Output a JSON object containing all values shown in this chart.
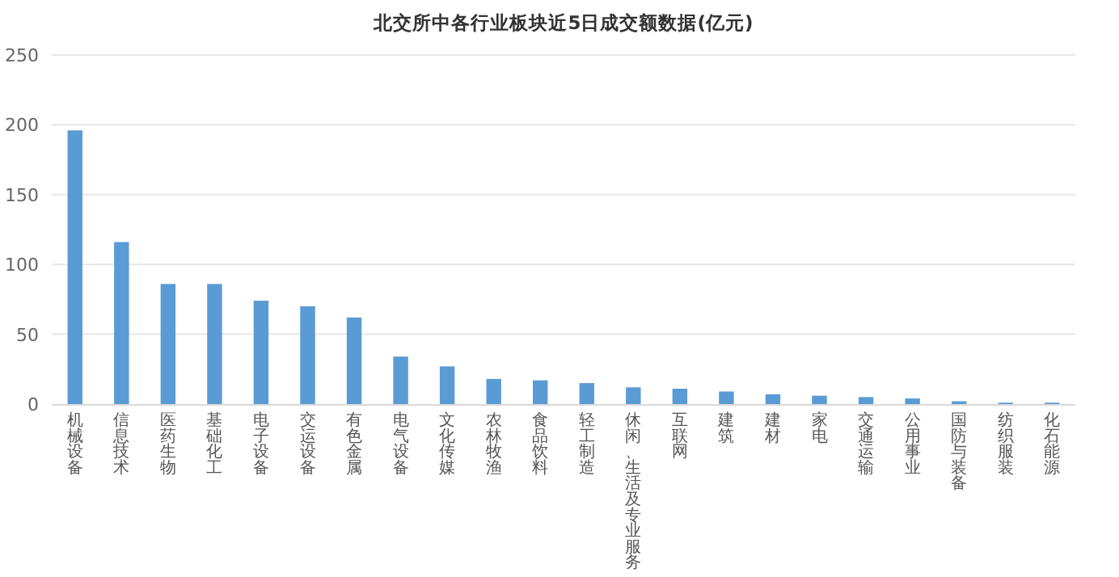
{
  "chart_data": {
    "type": "bar",
    "title": "北交所中各行业板块近5日成交额数据(亿元)",
    "categories": [
      "机械设备",
      "信息技术",
      "医药生物",
      "基础化工",
      "电子设备",
      "交运设备",
      "有色金属",
      "电气设备",
      "文化传媒",
      "农林牧渔",
      "食品饮料",
      "轻工制造",
      "休闲、生活及专业服务",
      "互联网",
      "建筑",
      "建材",
      "家电",
      "交通运输",
      "公用事业",
      "国防与装备",
      "纺织服装",
      "化石能源"
    ],
    "values": [
      196,
      116,
      86,
      86,
      74,
      70,
      62,
      34,
      27,
      18,
      17,
      15,
      12,
      11,
      9,
      7,
      6,
      5,
      4,
      2,
      1,
      1
    ],
    "color": "#5b9bd5",
    "ylim": [
      0,
      250
    ],
    "yticks": [
      0,
      50,
      100,
      150,
      200,
      250
    ],
    "grid": "y"
  }
}
